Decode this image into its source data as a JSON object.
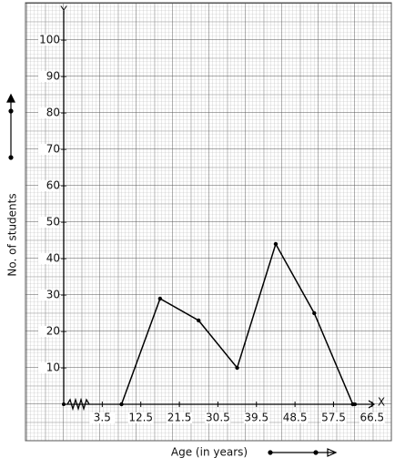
{
  "chart_data": {
    "type": "line",
    "x_label": "Age (in years)",
    "y_label": "No. of students",
    "x_axis_name": "X",
    "y_axis_name": "Y",
    "x": [
      8,
      17,
      26,
      35,
      44,
      53,
      62
    ],
    "series": [
      {
        "color": "#000000",
        "values": [
          0,
          29,
          23,
          10,
          44,
          25,
          0
        ]
      }
    ],
    "xlim": [
      -5.5,
      71
    ],
    "ylim": [
      0,
      108.5
    ],
    "xticks": [
      3.5,
      12.5,
      21.5,
      30.5,
      39.5,
      48.5,
      57.5,
      66.5
    ],
    "yticks": [
      10,
      20,
      30,
      40,
      50,
      60,
      70,
      80,
      90,
      100
    ],
    "grid": true
  }
}
